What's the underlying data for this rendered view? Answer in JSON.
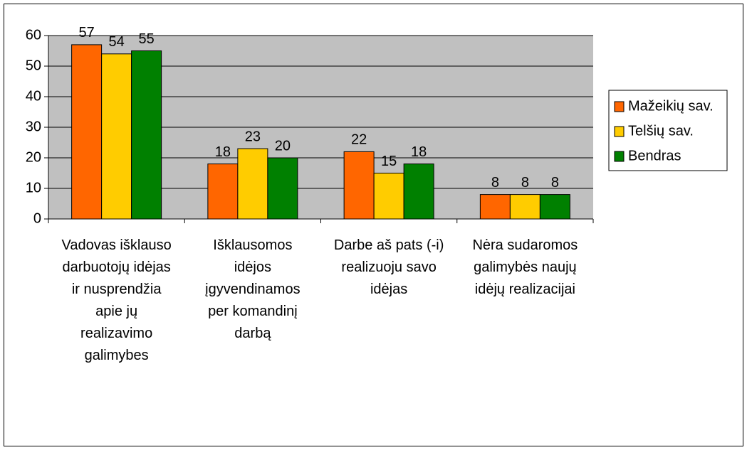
{
  "chart_data": {
    "type": "bar",
    "categories": [
      "Vadovas išklauso darbuotojų idėjas ir nusprendžia apie jų realizavimo galimybes",
      "Išklausomos idėjos įgyvendinamos per komandinį darbą",
      "Darbe aš pats (-i) realizuoju savo idėjas",
      "Nėra sudaromos galimybės naujų idėjų realizacijai"
    ],
    "series": [
      {
        "name": "Mažeikių sav.",
        "color": "#ff6600",
        "values": [
          57,
          18,
          22,
          8
        ]
      },
      {
        "name": "Telšių sav.",
        "color": "#ffcc00",
        "values": [
          54,
          23,
          15,
          8
        ]
      },
      {
        "name": "Bendras",
        "color": "#008000",
        "values": [
          55,
          20,
          18,
          8
        ]
      }
    ],
    "ylim": [
      0,
      60
    ],
    "yticks": [
      0,
      10,
      20,
      30,
      40,
      50,
      60
    ],
    "grid": true,
    "legend": "right"
  }
}
